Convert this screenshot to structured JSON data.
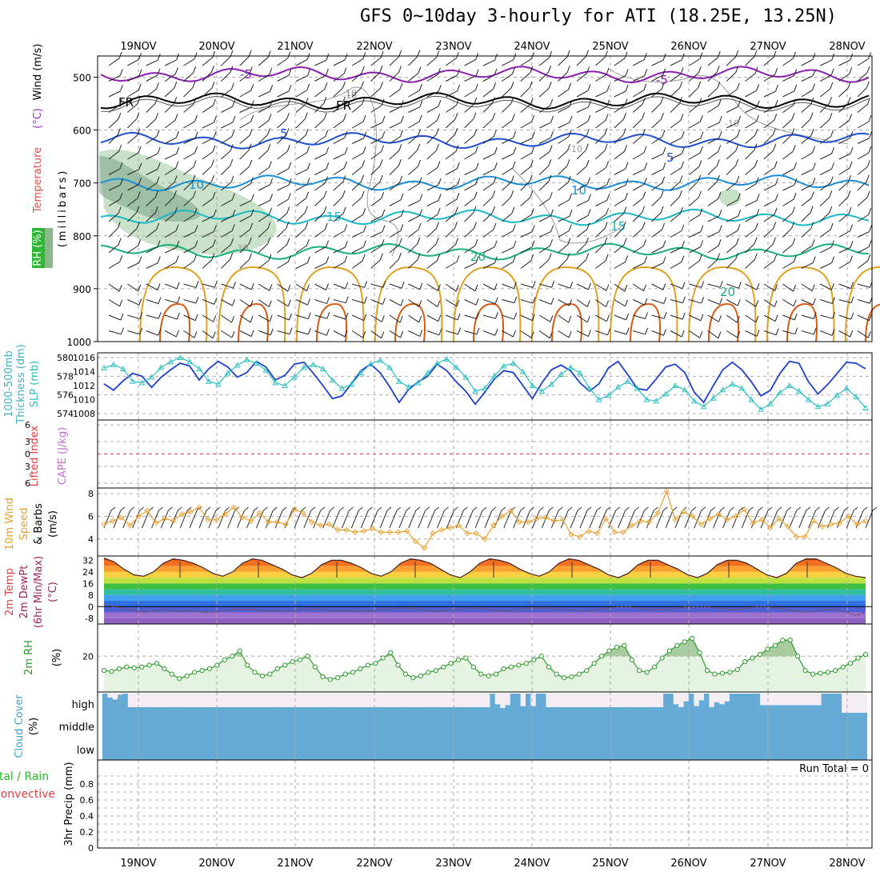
{
  "title": "GFS 0~10day 3-hourly for ATI (18.25E, 13.25N)",
  "chart_data": [
    {
      "type": "line",
      "panel": "upper_air",
      "x_ticks": [
        "19NOV",
        "20NOV",
        "21NOV",
        "22NOV",
        "23NOV",
        "24NOV",
        "25NOV",
        "26NOV",
        "27NOV",
        "28NOV"
      ],
      "ylabel_parts": [
        "RH (%)",
        "Temperature",
        "(°C)",
        "Wind (m/s)",
        "(millibars)"
      ],
      "y_ticks": [
        "500",
        "600",
        "700",
        "800",
        "900",
        "1000"
      ],
      "y_scale": "inverted pressure",
      "ylim": [
        1000,
        460
      ],
      "isotherms": [
        {
          "label": "-5",
          "pressure": 495,
          "color": "#8a1fb0"
        },
        {
          "label": "FR",
          "pressure": 545,
          "color": "#000000"
        },
        {
          "label": "5",
          "pressure": 620,
          "color": "#1f4fd0"
        },
        {
          "label": "10",
          "pressure": 700,
          "color": "#1a8fd8"
        },
        {
          "label": "15",
          "pressure": 765,
          "color": "#19b8c6"
        },
        {
          "label": "20",
          "pressure": 830,
          "color": "#17b07a"
        }
      ],
      "contour_labels": [
        "-5",
        "FR",
        "5",
        "10",
        "15",
        "20",
        "-10",
        "-10",
        "-10",
        "10",
        "30",
        "30",
        "-5",
        "FR",
        "5",
        "10",
        "15",
        "20",
        "-5",
        "5",
        "10",
        "15",
        "20"
      ],
      "rh_colors": [
        "#b8d8b8",
        "#7fa88a"
      ]
    },
    {
      "type": "line",
      "panel": "thickness_slp",
      "ylabel_left": "1000-500mb Thickness (dm)",
      "ylabel_right": "SLP (mb)",
      "left_ticks": [
        "580",
        "578",
        "576",
        "574"
      ],
      "right_ticks": [
        "1016",
        "1014",
        "1012",
        "1010",
        "1008"
      ],
      "series": [
        {
          "name": "Thickness",
          "color": "#1f3fd0",
          "values": [
            577.2,
            576.5,
            577.5,
            578.3,
            578.0,
            576.8,
            577.9,
            578.7,
            579.4,
            579.1,
            577.6,
            578.8,
            579.6,
            579.0,
            577.9,
            578.4,
            579.6,
            579.0,
            577.6,
            578.1,
            579.3,
            579.5,
            578.3,
            577.0,
            575.6,
            575.9,
            577.2,
            578.6,
            579.3,
            578.4,
            576.9,
            575.2,
            576.6,
            577.4,
            578.0,
            579.3,
            578.6,
            577.4,
            576.4,
            575.0,
            576.3,
            577.7,
            578.6,
            578.4,
            577.0,
            575.6,
            577.3,
            578.7,
            579.2,
            578.6,
            577.3,
            576.4,
            577.2,
            578.9,
            579.6,
            578.2,
            576.7,
            576.5,
            577.7,
            579.0,
            579.3,
            578.4,
            576.3,
            575.2,
            577.0,
            578.7,
            579.5,
            578.7,
            577.4,
            575.9,
            576.5,
            578.3,
            579.6,
            579.4,
            577.4,
            576.1,
            577.1,
            578.3,
            579.5,
            579.4,
            578.8
          ]
        },
        {
          "name": "SLP",
          "color": "#2cc0c0",
          "values": [
            1014.5,
            1015.0,
            1014.4,
            1012.6,
            1012.4,
            1013.2,
            1014.6,
            1015.4,
            1016.0,
            1015.4,
            1014.4,
            1012.6,
            1012.2,
            1013.8,
            1014.9,
            1015.7,
            1015.2,
            1014.2,
            1012.4,
            1012.0,
            1013.2,
            1014.6,
            1015.0,
            1014.4,
            1012.8,
            1011.6,
            1012.2,
            1013.8,
            1015.1,
            1015.6,
            1014.6,
            1012.6,
            1011.8,
            1012.4,
            1013.8,
            1015.2,
            1015.8,
            1014.6,
            1013.2,
            1011.2,
            1011.6,
            1013.4,
            1014.8,
            1015.2,
            1014.0,
            1012.0,
            1011.2,
            1012.2,
            1013.6,
            1014.6,
            1013.8,
            1011.6,
            1010.0,
            1010.6,
            1011.8,
            1012.6,
            1011.6,
            1010.0,
            1009.8,
            1010.8,
            1012.0,
            1011.4,
            1009.8,
            1009.0,
            1010.2,
            1011.4,
            1012.2,
            1011.6,
            1010.0,
            1008.6,
            1009.4,
            1011.0,
            1012.0,
            1011.2,
            1010.0,
            1009.0,
            1009.4,
            1010.6,
            1011.6,
            1010.4,
            1008.8
          ]
        }
      ]
    },
    {
      "type": "line",
      "panel": "stability",
      "ylabel_left": "Lifted Index",
      "ylabel_right": "CAPE (J/kg)",
      "y_ticks": [
        "6",
        "3",
        "0",
        "3",
        "6"
      ]
    },
    {
      "type": "line",
      "panel": "wind10m",
      "ylabel": [
        "10m Wind",
        "Speed",
        "& Barbs",
        "(m/s)"
      ],
      "y_ticks": [
        "8",
        "6",
        "4"
      ],
      "ylim": [
        2.5,
        8.5
      ],
      "series": [
        {
          "name": "10m Wind Speed",
          "color": "#e8a030",
          "values": [
            5.3,
            5.6,
            5.9,
            5.2,
            6.0,
            6.5,
            5.4,
            5.8,
            5.6,
            6.2,
            6.4,
            6.8,
            5.7,
            5.7,
            6.2,
            6.8,
            5.9,
            5.6,
            6.3,
            5.5,
            5.5,
            5.3,
            6.6,
            6.3,
            5.5,
            5.2,
            5.3,
            4.8,
            4.8,
            4.6,
            4.7,
            4.9,
            4.6,
            4.6,
            4.6,
            4.7,
            3.8,
            3.2,
            4.5,
            4.8,
            5.0,
            5.2,
            4.5,
            4.5,
            4.0,
            5.2,
            6.0,
            6.5,
            5.5,
            5.5,
            5.8,
            5.9,
            5.6,
            5.7,
            4.4,
            4.2,
            4.7,
            4.5,
            5.8,
            4.6,
            4.6,
            5.2,
            5.6,
            5.5,
            6.3,
            8.2,
            5.7,
            6.4,
            6.0,
            5.3,
            5.8,
            6.2,
            5.7,
            6.0,
            6.6,
            5.4,
            5.7,
            5.0,
            5.8,
            5.1,
            4.2,
            4.2,
            5.6,
            5.1,
            5.3,
            5.4,
            6.0,
            5.3,
            5.6
          ]
        }
      ]
    },
    {
      "type": "area",
      "panel": "temp2m",
      "ylabel": [
        "2m Temp",
        "2m DewPt",
        "(6hr Min/Max)",
        "(°C)"
      ],
      "y_ticks": [
        "32",
        "24",
        "16",
        "8",
        "0",
        "-8"
      ],
      "ylim": [
        -12,
        35
      ],
      "series": [
        {
          "name": "2m Temp",
          "color": "#b03000",
          "values": [
            33.5,
            31,
            26,
            22,
            21,
            24,
            30,
            33,
            32,
            30,
            27,
            23,
            21,
            24,
            30,
            33,
            32,
            29,
            26,
            22,
            20,
            23,
            29,
            32,
            32,
            30,
            27,
            23,
            21,
            24,
            30,
            33,
            32,
            30,
            26,
            22,
            20,
            24,
            30,
            33,
            32,
            30,
            26,
            23,
            21,
            24,
            30,
            33,
            32,
            29,
            26,
            22,
            20,
            23,
            29,
            32,
            32,
            29,
            26,
            22,
            20,
            23,
            29,
            32,
            32,
            30,
            26,
            22,
            20,
            23,
            30,
            33,
            33,
            30,
            27,
            23,
            21,
            20
          ]
        },
        {
          "name": "2m DewPt",
          "color": "#804040",
          "values": [
            2,
            0,
            -1,
            -3,
            -4,
            -3,
            -2,
            -3,
            -3,
            -3,
            -4,
            -4,
            -3,
            -2,
            -2,
            -2,
            -3,
            -3,
            -3,
            -3,
            -2,
            -2,
            -2,
            -3,
            -3,
            -3,
            -3,
            -3,
            -2,
            -2,
            -1,
            -1,
            -2,
            -3,
            -3,
            -2,
            -2,
            -1,
            -1,
            -2,
            -3,
            -3,
            -2,
            -1,
            -1,
            -1,
            -2,
            -2,
            -3,
            -3,
            -2,
            -1,
            0,
            0,
            -1,
            -2,
            -2,
            -2,
            -1,
            0,
            0,
            0,
            -1,
            -2,
            -2,
            -1,
            0,
            0,
            -1,
            -2,
            -3,
            -4,
            -3,
            -2,
            -2,
            -4,
            -6,
            -4
          ]
        }
      ]
    },
    {
      "type": "area",
      "panel": "rh2m",
      "ylabel": [
        "2m RH",
        "(%)"
      ],
      "y_ticks": [
        "20"
      ],
      "ylim": [
        0,
        38
      ],
      "series": [
        {
          "name": "2m RH",
          "color": "#2c9c2c",
          "values": [
            12,
            11.5,
            13,
            14,
            13.5,
            14,
            15,
            16,
            13,
            10,
            7.5,
            9,
            11,
            12,
            13,
            15,
            18,
            20,
            23,
            15,
            11,
            9,
            10,
            13,
            15,
            17,
            18,
            20,
            14,
            8.5,
            7,
            8,
            10,
            11,
            13,
            15,
            16,
            19,
            22,
            15,
            10,
            8,
            9,
            11,
            12,
            14,
            16,
            18,
            19,
            14,
            10,
            9,
            10,
            13,
            14,
            15,
            16,
            18,
            20,
            14,
            10,
            8,
            8.5,
            10,
            12,
            16,
            20,
            23,
            25,
            26,
            18,
            12,
            11,
            14,
            19,
            23,
            26,
            28,
            30,
            22,
            12,
            10,
            10.5,
            11,
            12.5,
            17,
            19,
            21,
            24,
            26,
            29,
            29,
            20,
            12,
            10,
            10.5,
            11,
            12,
            14,
            16,
            19,
            21
          ]
        }
      ]
    },
    {
      "type": "bar",
      "panel": "cloud",
      "ylabel": [
        "Cloud Cover",
        "(%)"
      ],
      "y_ticks": [
        "high",
        "middle",
        "low"
      ],
      "high_cover": [
        100,
        80,
        70,
        95,
        100,
        30,
        30,
        30,
        30,
        30,
        30,
        30,
        30,
        30,
        30,
        30,
        30,
        30,
        30,
        30,
        30,
        30,
        30,
        30,
        30,
        30,
        30,
        30,
        30,
        30,
        30,
        30,
        30,
        30,
        30,
        30,
        30,
        30,
        30,
        30,
        30,
        30,
        30,
        30,
        30,
        30,
        30,
        30,
        30,
        30,
        30,
        30,
        30,
        30,
        30,
        30,
        30,
        30,
        30,
        30,
        30,
        30,
        30,
        30,
        30,
        30,
        30,
        30,
        30,
        30,
        30,
        30,
        30,
        30,
        30,
        30,
        100,
        45,
        25,
        40,
        100,
        100,
        35,
        100,
        35,
        100,
        100,
        30,
        30,
        30,
        30,
        30,
        30,
        30,
        30,
        30,
        30,
        30,
        30,
        30,
        30,
        30,
        30,
        30,
        30,
        30,
        30,
        30,
        30,
        30,
        100,
        100,
        45,
        30,
        60,
        100,
        35,
        65,
        100,
        30,
        55,
        45,
        60,
        100,
        100,
        100,
        100,
        100,
        100,
        40,
        40,
        40,
        40,
        40,
        40,
        40,
        40,
        40,
        40,
        40,
        40,
        100,
        100,
        100,
        100,
        0,
        0,
        0,
        0,
        0
      ]
    },
    {
      "type": "bar",
      "panel": "precip",
      "ylabel_left": [
        "Total / Rain",
        "Convective"
      ],
      "ylabel": [
        "3hr Precip (mm)"
      ],
      "y_ticks": [
        "0.8",
        "0.6",
        "0.4",
        "0.2",
        "0"
      ],
      "ylim": [
        0,
        1
      ],
      "annotation": "Run Total = 0",
      "values": []
    }
  ]
}
